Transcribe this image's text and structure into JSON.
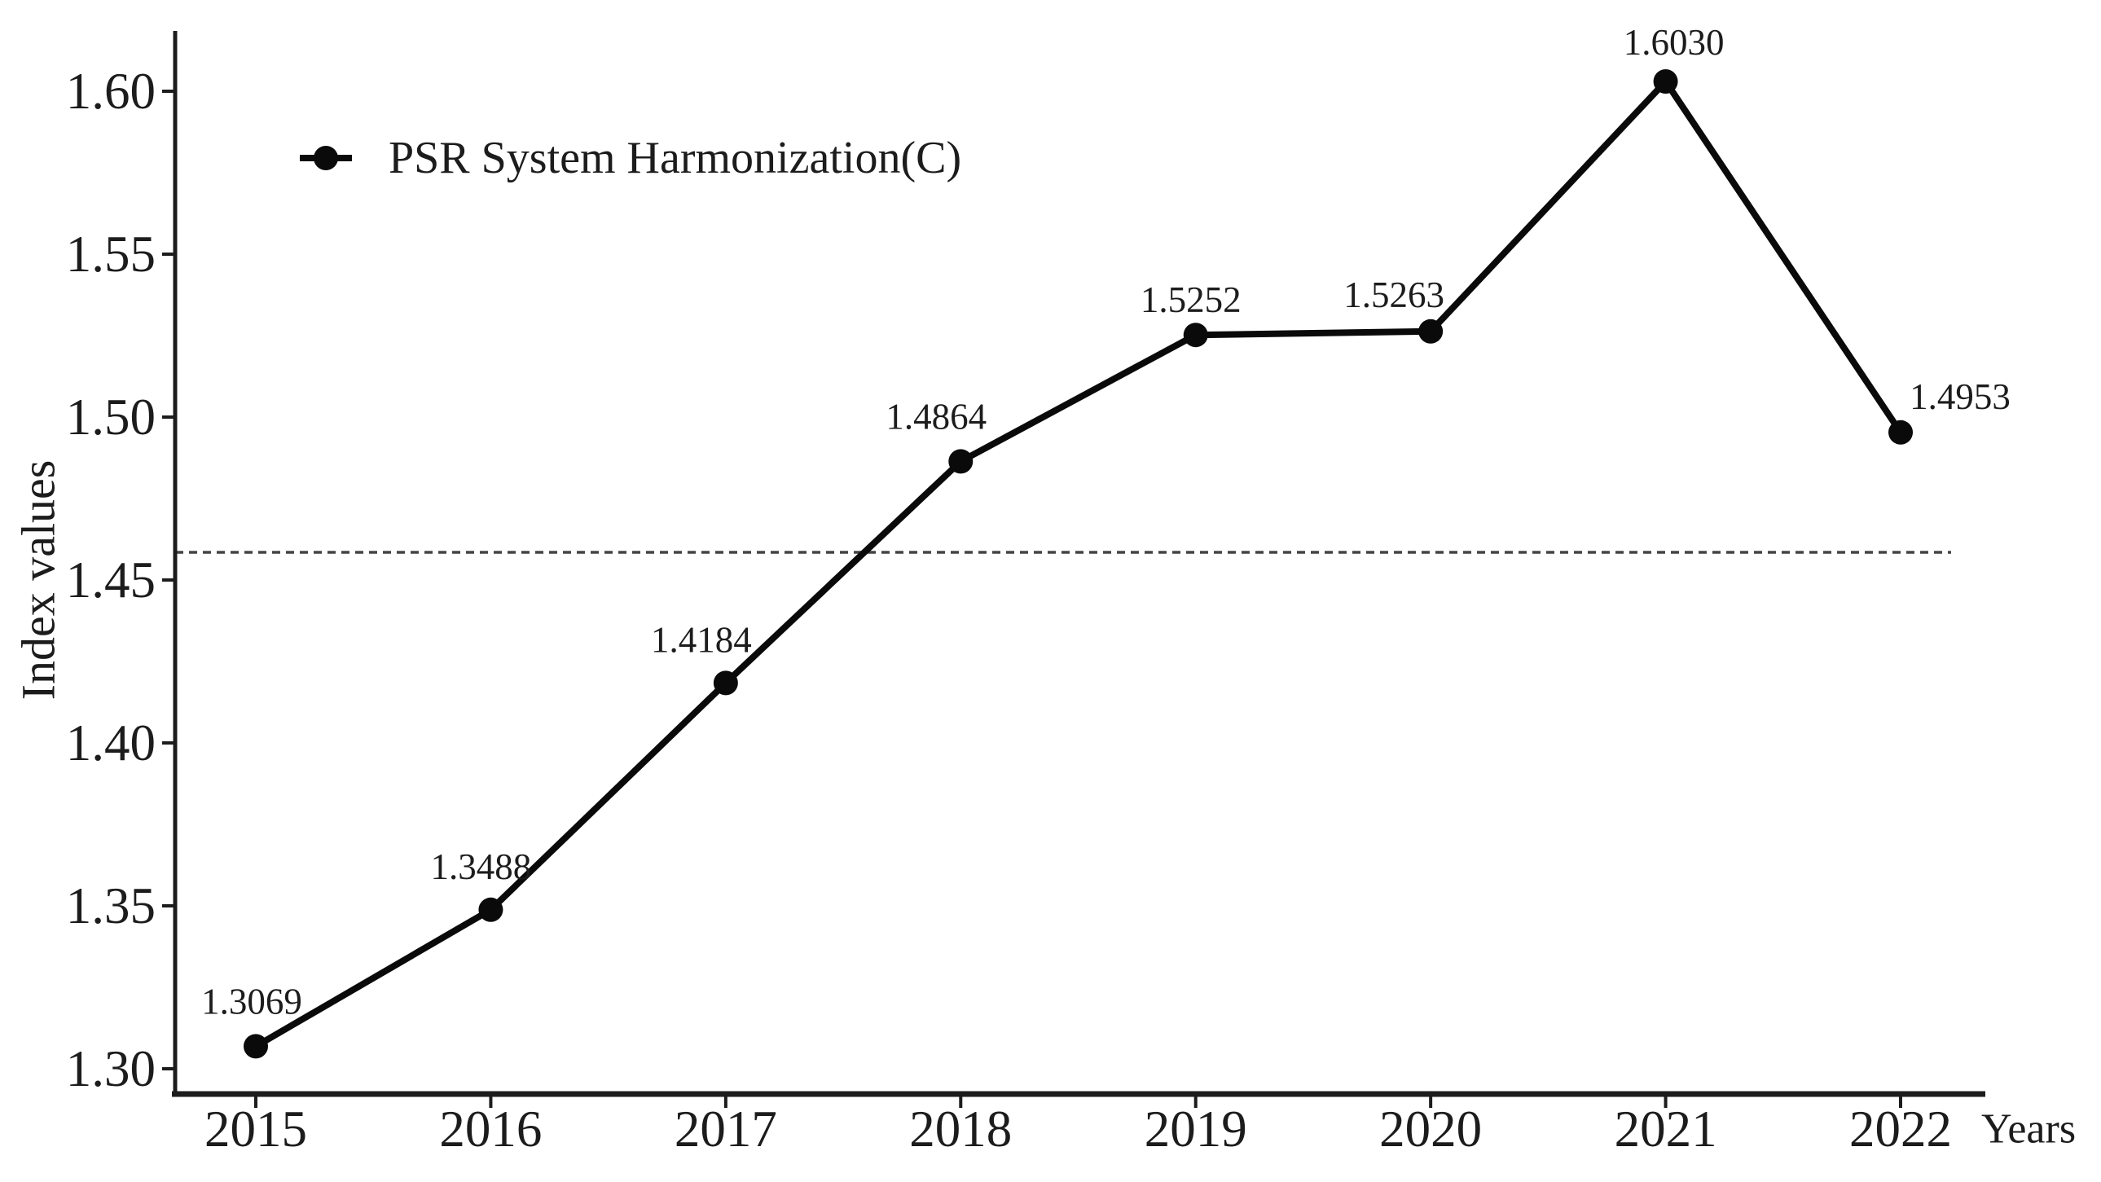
{
  "chart_data": {
    "type": "line",
    "title": "",
    "xlabel": "Years",
    "ylabel": "Index values",
    "categories": [
      "2015",
      "2016",
      "2017",
      "2018",
      "2019",
      "2020",
      "2021",
      "2022"
    ],
    "series": [
      {
        "name": "PSR System Harmonization(C)",
        "values": [
          1.3069,
          1.3488,
          1.4184,
          1.4864,
          1.5252,
          1.5263,
          1.603,
          1.4953
        ],
        "point_labels": [
          "1.3069",
          "1.3488",
          "1.4184",
          "1.4864",
          "1.5252",
          "1.5263",
          "1.6030",
          "1.4953"
        ]
      }
    ],
    "yticks": [
      "1.30",
      "1.35",
      "1.40",
      "1.45",
      "1.50",
      "1.55",
      "1.60"
    ],
    "ylim": [
      1.2925,
      1.6185
    ],
    "reference_line": {
      "value": 1.4585,
      "style": "dashed"
    },
    "legend": {
      "position": "top-left-inside",
      "marker": "filled-circle-on-line"
    },
    "grid": false,
    "colors": {
      "series": "#0a0a0a",
      "reference": "#444444",
      "axis": "#1c1c1c",
      "text": "#1c1c1c",
      "background": "#ffffff"
    }
  }
}
